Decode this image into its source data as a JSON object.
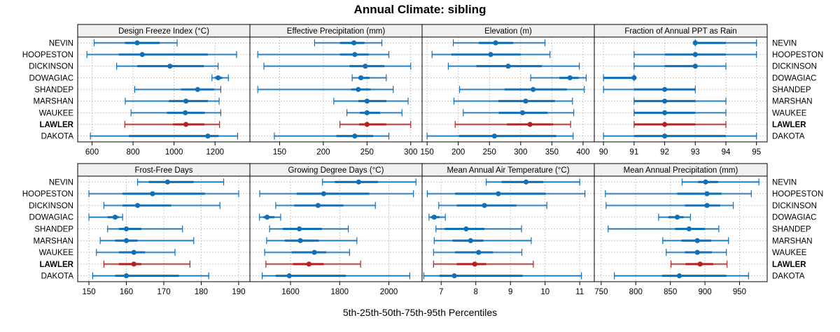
{
  "title": "Annual Climate: sibling",
  "xlabel": "5th-25th-50th-75th-95th Percentiles",
  "colors": {
    "series": "#1170b5",
    "highlight": "#b22222",
    "strip": "#f0f0f0",
    "grid": "#c8c8c8"
  },
  "chart_data": {
    "type": "dotplot-percentile-intervals",
    "title": "Annual Climate: sibling",
    "xlabel": "5th-25th-50th-75th-95th Percentiles",
    "rows": [
      "NEVIN",
      "HOOPESTON",
      "DICKINSON",
      "DOWAGIAC",
      "SHANDEP",
      "MARSHAN",
      "WAUKEE",
      "LAWLER",
      "DAKOTA"
    ],
    "highlight_row": "LAWLER",
    "panels": [
      {
        "name": "Design Freeze Index (°C)",
        "xlim": [
          530,
          1370
        ],
        "ticks": [
          600,
          800,
          1000,
          1200
        ],
        "values": [
          [
            610,
            760,
            820,
            930,
            1015
          ],
          [
            575,
            730,
            845,
            1165,
            1305
          ],
          [
            720,
            820,
            980,
            1145,
            1215
          ],
          [
            1185,
            1200,
            1215,
            1235,
            1265
          ],
          [
            808,
            1035,
            1115,
            1195,
            1228
          ],
          [
            762,
            975,
            1058,
            1165,
            1220
          ],
          [
            790,
            965,
            1055,
            1150,
            1228
          ],
          [
            760,
            995,
            1058,
            1148,
            1222
          ],
          [
            592,
            780,
            1165,
            1218,
            1310
          ]
        ]
      },
      {
        "name": "Effective Precipitation (mm)",
        "xlim": [
          116,
          313
        ],
        "ticks": [
          150,
          200,
          250,
          300
        ],
        "values": [
          [
            190,
            219,
            235,
            247,
            267
          ],
          [
            125,
            219,
            236,
            252,
            275
          ],
          [
            132,
            230,
            248,
            270,
            300
          ],
          [
            233,
            240,
            243,
            253,
            272
          ],
          [
            125,
            232,
            240,
            254,
            280
          ],
          [
            212,
            240,
            250,
            272,
            297
          ],
          [
            227,
            242,
            250,
            265,
            290
          ],
          [
            219,
            241,
            250,
            272,
            300
          ],
          [
            144,
            215,
            236,
            257,
            275
          ]
        ]
      },
      {
        "name": "Elevation (m)",
        "xlim": [
          142,
          418
        ],
        "ticks": [
          150,
          200,
          250,
          300,
          350,
          400
        ],
        "values": [
          [
            192,
            233,
            260,
            288,
            339
          ],
          [
            158,
            189,
            252,
            300,
            347
          ],
          [
            184,
            229,
            280,
            334,
            394
          ],
          [
            316,
            362,
            379,
            393,
            405
          ],
          [
            202,
            274,
            320,
            374,
            402
          ],
          [
            193,
            264,
            308,
            355,
            383
          ],
          [
            208,
            265,
            303,
            343,
            385
          ],
          [
            195,
            278,
            315,
            352,
            380
          ],
          [
            150,
            201,
            258,
            357,
            384
          ]
        ]
      },
      {
        "name": "Fraction of Annual PPT as Rain",
        "xlim": [
          89.7,
          95.35
        ],
        "ticks": [
          90,
          91,
          92,
          93,
          94,
          95
        ],
        "values": [
          [
            93,
            93,
            93,
            94,
            95
          ],
          [
            91,
            92,
            93,
            94,
            95
          ],
          [
            91,
            92,
            93,
            93,
            94
          ],
          [
            90,
            90,
            91,
            91,
            91
          ],
          [
            90,
            91,
            92,
            93,
            93
          ],
          [
            91,
            91,
            92,
            93,
            94
          ],
          [
            91,
            91,
            92,
            93,
            94
          ],
          [
            91,
            91,
            92,
            93,
            94
          ],
          [
            90,
            91,
            92,
            94,
            95
          ]
        ]
      },
      {
        "name": "Frost-Free Days",
        "xlim": [
          147,
          193
        ],
        "ticks": [
          150,
          160,
          170,
          180,
          190
        ],
        "values": [
          [
            163,
            166,
            171,
            178,
            186
          ],
          [
            150,
            159,
            167,
            181,
            190
          ],
          [
            154,
            159,
            163,
            172,
            185
          ],
          [
            150,
            155,
            157,
            158,
            159
          ],
          [
            155,
            158,
            160,
            164,
            175
          ],
          [
            153,
            157,
            160,
            163,
            178
          ],
          [
            152,
            158,
            162,
            165,
            173
          ],
          [
            154,
            158,
            162,
            164,
            177
          ],
          [
            151,
            157,
            160,
            174,
            182
          ]
        ]
      },
      {
        "name": "Growing Degree Days (°C)",
        "xlim": [
          1435,
          2135
        ],
        "ticks": [
          1600,
          1800,
          2000
        ],
        "values": [
          [
            1730,
            1780,
            1877,
            1955,
            2110
          ],
          [
            1475,
            1625,
            1735,
            1920,
            2100
          ],
          [
            1540,
            1615,
            1712,
            1815,
            1945
          ],
          [
            1474,
            1490,
            1505,
            1535,
            1560
          ],
          [
            1515,
            1568,
            1636,
            1728,
            1835
          ],
          [
            1503,
            1577,
            1640,
            1715,
            1870
          ],
          [
            1495,
            1605,
            1697,
            1745,
            1840
          ],
          [
            1500,
            1610,
            1675,
            1735,
            1885
          ],
          [
            1485,
            1540,
            1595,
            1825,
            2085
          ]
        ]
      },
      {
        "name": "Mean Annual Air Temperature (°C)",
        "xlim": [
          6.45,
          11.42
        ],
        "ticks": [
          7,
          8,
          9,
          10,
          11
        ],
        "values": [
          [
            8.3,
            8.75,
            9.45,
            9.95,
            11.0
          ],
          [
            6.6,
            7.4,
            8.65,
            10.02,
            11.15
          ],
          [
            6.93,
            7.45,
            8.25,
            9.17,
            10.05
          ],
          [
            6.65,
            6.7,
            6.8,
            6.95,
            7.12
          ],
          [
            6.85,
            7.1,
            7.72,
            8.25,
            9.32
          ],
          [
            6.8,
            7.33,
            7.85,
            8.22,
            9.6
          ],
          [
            6.78,
            7.4,
            8.08,
            8.5,
            9.33
          ],
          [
            6.78,
            7.45,
            7.97,
            8.3,
            9.66
          ],
          [
            6.5,
            6.95,
            7.38,
            9.35,
            11.05
          ]
        ]
      },
      {
        "name": "Mean Annual Precipitation (mm)",
        "xlim": [
          740,
          990
        ],
        "ticks": [
          750,
          800,
          850,
          900,
          950
        ],
        "values": [
          [
            867,
            890,
            901,
            919,
            978
          ],
          [
            756,
            860,
            903,
            924,
            967
          ],
          [
            757,
            871,
            903,
            922,
            941
          ],
          [
            833,
            847,
            860,
            869,
            879
          ],
          [
            760,
            857,
            877,
            900,
            920
          ],
          [
            839,
            866,
            889,
            909,
            934
          ],
          [
            844,
            871,
            889,
            910,
            931
          ],
          [
            851,
            872,
            893,
            912,
            932
          ],
          [
            769,
            838,
            863,
            931,
            963
          ]
        ]
      }
    ]
  }
}
